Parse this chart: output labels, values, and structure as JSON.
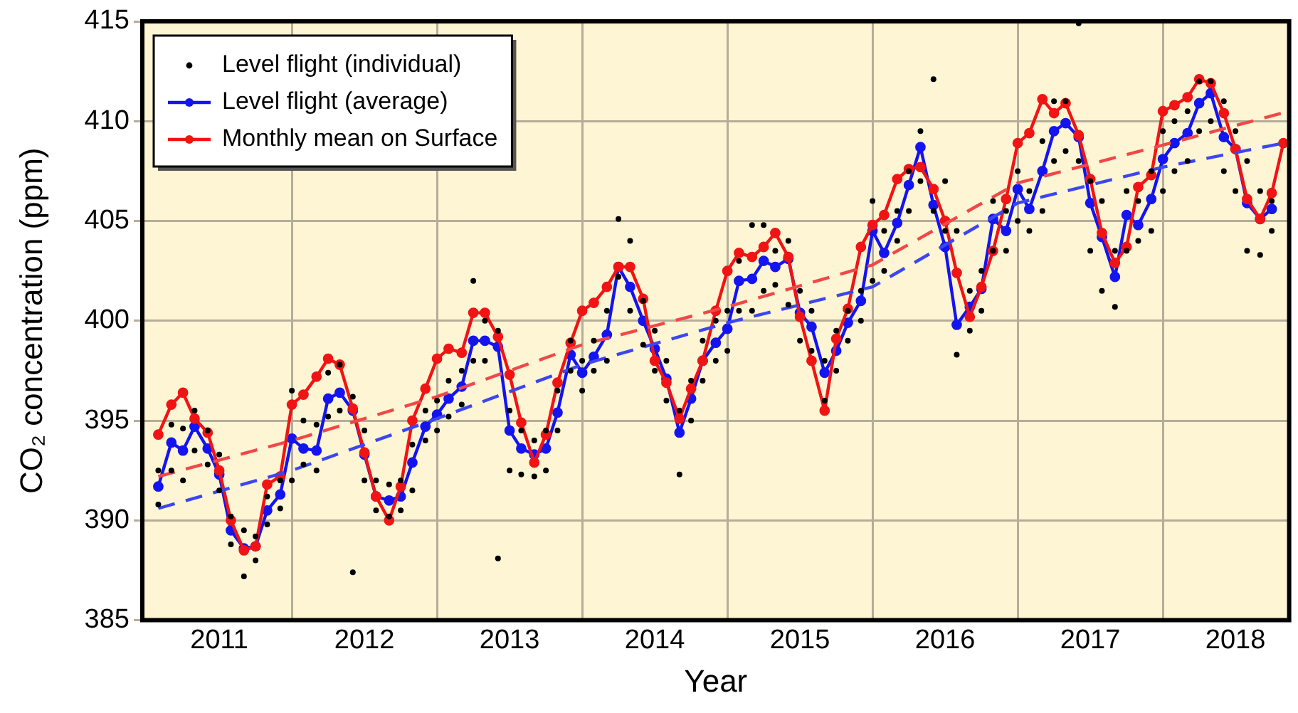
{
  "chart_data": {
    "type": "line",
    "xlabel": "Year",
    "ylabel": "CO₂ concentration (ppm)",
    "xlim": [
      2010.97,
      2018.87
    ],
    "ylim": [
      385,
      415
    ],
    "xticks": [
      {
        "value": 2011.5,
        "label": "2011"
      },
      {
        "value": 2012.5,
        "label": "2012"
      },
      {
        "value": 2013.5,
        "label": "2013"
      },
      {
        "value": 2014.5,
        "label": "2014"
      },
      {
        "value": 2015.5,
        "label": "2015"
      },
      {
        "value": 2016.5,
        "label": "2016"
      },
      {
        "value": 2017.5,
        "label": "2017"
      },
      {
        "value": 2018.5,
        "label": "2018"
      },
      {
        "value": 2012,
        "label": null
      },
      {
        "value": 2013,
        "label": null
      },
      {
        "value": 2014,
        "label": null
      },
      {
        "value": 2015,
        "label": null
      },
      {
        "value": 2016,
        "label": null
      },
      {
        "value": 2017,
        "label": null
      },
      {
        "value": 2018,
        "label": null
      }
    ],
    "yticks": [
      385,
      390,
      395,
      400,
      405,
      410,
      415
    ],
    "grid": true,
    "legend": "top left",
    "series": [
      {
        "name": "Level flight (individual)",
        "type": "scatter",
        "color": "#000000",
        "marker": "circle",
        "x": [
          2011.08,
          2011.08,
          2011.17,
          2011.17,
          2011.25,
          2011.25,
          2011.33,
          2011.33,
          2011.42,
          2011.42,
          2011.5,
          2011.5,
          2011.58,
          2011.58,
          2011.67,
          2011.67,
          2011.75,
          2011.75,
          2011.83,
          2011.83,
          2011.92,
          2011.92,
          2012,
          2012,
          2012.08,
          2012.08,
          2012.17,
          2012.17,
          2012.25,
          2012.25,
          2012.33,
          2012.33,
          2012.42,
          2012.42,
          2012.5,
          2012.5,
          2012.58,
          2012.58,
          2012.67,
          2012.67,
          2012.75,
          2012.75,
          2012.83,
          2012.83,
          2012.92,
          2012.92,
          2013,
          2013,
          2013.08,
          2013.08,
          2013.17,
          2013.17,
          2013.25,
          2013.25,
          2013.33,
          2013.33,
          2013.42,
          2013.42,
          2013.5,
          2013.5,
          2013.58,
          2013.58,
          2013.67,
          2013.67,
          2013.75,
          2013.75,
          2013.83,
          2013.83,
          2013.92,
          2013.92,
          2014,
          2014,
          2014.08,
          2014.08,
          2014.17,
          2014.17,
          2014.25,
          2014.25,
          2014.33,
          2014.33,
          2014.42,
          2014.42,
          2014.5,
          2014.5,
          2014.58,
          2014.58,
          2014.67,
          2014.67,
          2014.75,
          2014.75,
          2014.83,
          2014.83,
          2014.92,
          2014.92,
          2015,
          2015,
          2015.08,
          2015.08,
          2015.17,
          2015.17,
          2015.25,
          2015.25,
          2015.33,
          2015.33,
          2015.42,
          2015.42,
          2015.5,
          2015.5,
          2015.58,
          2015.58,
          2015.67,
          2015.67,
          2015.75,
          2015.75,
          2015.83,
          2015.83,
          2015.92,
          2015.92,
          2016,
          2016,
          2016.08,
          2016.08,
          2016.17,
          2016.17,
          2016.25,
          2016.25,
          2016.33,
          2016.33,
          2016.42,
          2016.42,
          2016.5,
          2016.5,
          2016.58,
          2016.58,
          2016.67,
          2016.67,
          2016.75,
          2016.75,
          2016.83,
          2016.83,
          2016.92,
          2016.92,
          2017,
          2017,
          2017.08,
          2017.08,
          2017.17,
          2017.17,
          2017.25,
          2017.25,
          2017.33,
          2017.33,
          2017.42,
          2017.42,
          2017.5,
          2017.5,
          2017.58,
          2017.58,
          2017.67,
          2017.67,
          2017.75,
          2017.75,
          2017.83,
          2017.83,
          2017.92,
          2017.92,
          2018,
          2018,
          2018.08,
          2018.08,
          2018.17,
          2018.17,
          2018.25,
          2018.25,
          2018.33,
          2018.33,
          2018.42,
          2018.42,
          2018.5,
          2018.5,
          2018.58,
          2018.58,
          2018.67,
          2018.67,
          2018.75,
          2018.75
        ],
        "values": [
          392.5,
          390.8,
          394.8,
          392.5,
          394.6,
          392.0,
          395.5,
          393.5,
          394.5,
          392.8,
          393.3,
          391.5,
          390.2,
          388.8,
          389.5,
          387.2,
          389.2,
          388.0,
          391.2,
          389.8,
          392.0,
          390.6,
          396.5,
          392.0,
          395.0,
          392.8,
          394.8,
          392.5,
          397.4,
          395.2,
          397.8,
          395.5,
          396.2,
          387.4,
          394.5,
          392.0,
          392.0,
          390.5,
          391.8,
          390.2,
          392.0,
          390.5,
          393.8,
          391.5,
          395.5,
          394.0,
          396.0,
          394.5,
          397.0,
          395.2,
          397.5,
          395.8,
          402.0,
          398.0,
          400.0,
          398.0,
          399.5,
          388.1,
          395.5,
          392.5,
          394.5,
          392.3,
          394.0,
          392.2,
          394.5,
          392.5,
          396.5,
          394.5,
          399.0,
          397.5,
          398.0,
          396.5,
          399.0,
          397.5,
          400.5,
          398.0,
          405.1,
          402.2,
          404.0,
          400.5,
          401.0,
          398.8,
          399.5,
          397.5,
          398.0,
          396.0,
          395.5,
          392.3,
          397.0,
          395.0,
          399.0,
          397.0,
          400.0,
          398.0,
          400.5,
          398.5,
          403.0,
          400.5,
          404.8,
          400.5,
          404.8,
          401.5,
          403.5,
          401.8,
          404.0,
          400.8,
          401.5,
          399.0,
          400.5,
          398.5,
          398.0,
          396.0,
          399.5,
          397.5,
          400.5,
          399.0,
          401.5,
          400.0,
          406.0,
          402.0,
          404.5,
          402.5,
          405.5,
          404.0,
          407.5,
          405.5,
          409.5,
          407.0,
          412.1,
          405.5,
          407.0,
          404.5,
          404.5,
          398.3,
          401.5,
          399.5,
          402.5,
          400.5,
          406.0,
          403.5,
          405.5,
          403.5,
          407.5,
          405.0,
          406.5,
          404.5,
          409.0,
          405.5,
          411.0,
          408.0,
          411.0,
          408.5,
          414.9,
          408.0,
          407.0,
          403.5,
          406.0,
          401.5,
          403.5,
          400.7,
          406.5,
          403.5,
          406.0,
          404.0,
          407.5,
          404.5,
          409.5,
          406.5,
          410.0,
          407.5,
          410.5,
          408.0,
          412.0,
          409.5,
          412.0,
          410.0,
          411.0,
          407.5,
          409.5,
          406.5,
          408.0,
          403.5,
          406.5,
          403.3,
          406.0,
          404.5
        ]
      },
      {
        "name": "Level flight (average)",
        "color": "#1414f0",
        "marker": "circle",
        "line_style": "solid",
        "x": [
          2011.08,
          2011.17,
          2011.25,
          2011.33,
          2011.42,
          2011.5,
          2011.58,
          2011.67,
          2011.75,
          2011.83,
          2011.92,
          2012,
          2012.08,
          2012.17,
          2012.25,
          2012.33,
          2012.42,
          2012.5,
          2012.58,
          2012.67,
          2012.75,
          2012.83,
          2012.92,
          2013,
          2013.08,
          2013.17,
          2013.25,
          2013.33,
          2013.42,
          2013.5,
          2013.58,
          2013.67,
          2013.75,
          2013.83,
          2013.92,
          2014,
          2014.08,
          2014.17,
          2014.25,
          2014.33,
          2014.42,
          2014.5,
          2014.58,
          2014.67,
          2014.75,
          2014.83,
          2014.92,
          2015,
          2015.08,
          2015.17,
          2015.25,
          2015.33,
          2015.42,
          2015.5,
          2015.58,
          2015.67,
          2015.75,
          2015.83,
          2015.92,
          2016,
          2016.08,
          2016.17,
          2016.25,
          2016.33,
          2016.42,
          2016.5,
          2016.58,
          2016.67,
          2016.75,
          2016.83,
          2016.92,
          2017,
          2017.08,
          2017.17,
          2017.25,
          2017.33,
          2017.42,
          2017.5,
          2017.58,
          2017.67,
          2017.75,
          2017.83,
          2017.92,
          2018,
          2018.08,
          2018.17,
          2018.25,
          2018.33,
          2018.42,
          2018.5,
          2018.58,
          2018.67,
          2018.75
        ],
        "values": [
          391.7,
          393.9,
          393.5,
          394.7,
          393.6,
          392.3,
          389.5,
          388.6,
          388.7,
          390.5,
          391.3,
          394.1,
          393.6,
          393.5,
          396.1,
          396.4,
          395.5,
          393.3,
          391.2,
          391.0,
          391.2,
          392.9,
          394.7,
          395.3,
          396.1,
          396.7,
          399.0,
          399.0,
          398.7,
          394.5,
          393.6,
          393.3,
          393.6,
          395.4,
          398.3,
          397.4,
          398.2,
          399.3,
          402.7,
          401.7,
          400.0,
          398.6,
          397.1,
          394.4,
          396.1,
          398.0,
          398.9,
          399.6,
          402.0,
          402.1,
          403.0,
          402.7,
          403.1,
          400.4,
          399.7,
          397.4,
          398.5,
          399.9,
          401.0,
          404.5,
          403.4,
          404.9,
          406.8,
          408.7,
          405.8,
          403.7,
          399.8,
          400.7,
          401.6,
          405.1,
          404.5,
          406.6,
          405.6,
          407.5,
          409.5,
          409.9,
          409.2,
          405.9,
          404.2,
          402.2,
          405.3,
          404.8,
          406.1,
          408.1,
          408.9,
          409.4,
          410.9,
          411.4,
          409.2,
          408.6,
          405.9,
          405.1,
          405.6
        ]
      },
      {
        "name": "Monthly mean on Surface",
        "color": "#f01414",
        "marker": "circle",
        "line_style": "solid",
        "x": [
          2011.08,
          2011.17,
          2011.25,
          2011.33,
          2011.42,
          2011.5,
          2011.58,
          2011.67,
          2011.75,
          2011.83,
          2011.92,
          2012,
          2012.08,
          2012.17,
          2012.25,
          2012.33,
          2012.42,
          2012.5,
          2012.58,
          2012.67,
          2012.75,
          2012.83,
          2012.92,
          2013,
          2013.08,
          2013.17,
          2013.25,
          2013.33,
          2013.42,
          2013.5,
          2013.58,
          2013.67,
          2013.75,
          2013.83,
          2013.92,
          2014,
          2014.08,
          2014.17,
          2014.25,
          2014.33,
          2014.42,
          2014.5,
          2014.58,
          2014.67,
          2014.75,
          2014.83,
          2014.92,
          2015,
          2015.08,
          2015.17,
          2015.25,
          2015.33,
          2015.42,
          2015.5,
          2015.58,
          2015.67,
          2015.75,
          2015.83,
          2015.92,
          2016,
          2016.08,
          2016.17,
          2016.25,
          2016.33,
          2016.42,
          2016.5,
          2016.58,
          2016.67,
          2016.75,
          2016.83,
          2016.92,
          2017,
          2017.08,
          2017.17,
          2017.25,
          2017.33,
          2017.42,
          2017.5,
          2017.58,
          2017.67,
          2017.75,
          2017.83,
          2017.92,
          2018,
          2018.08,
          2018.17,
          2018.25,
          2018.33,
          2018.42,
          2018.5,
          2018.58,
          2018.67,
          2018.75,
          2018.83
        ],
        "values": [
          394.3,
          395.8,
          396.4,
          395.1,
          394.4,
          392.5,
          390.0,
          388.5,
          388.7,
          391.8,
          392.2,
          395.8,
          396.3,
          397.2,
          398.1,
          397.8,
          395.6,
          393.4,
          391.2,
          390.0,
          391.7,
          395.0,
          396.6,
          398.1,
          398.6,
          398.4,
          400.4,
          400.4,
          399.2,
          397.3,
          394.9,
          392.9,
          394.3,
          396.9,
          398.9,
          400.5,
          400.9,
          401.7,
          402.7,
          402.7,
          401.1,
          398.0,
          396.9,
          395.1,
          396.6,
          398.0,
          400.5,
          402.5,
          403.4,
          403.2,
          403.7,
          404.4,
          403.2,
          400.2,
          398.0,
          395.5,
          399.1,
          400.6,
          403.7,
          404.8,
          405.3,
          407.1,
          407.6,
          407.7,
          406.6,
          405.0,
          402.4,
          400.2,
          401.7,
          403.5,
          406.1,
          408.9,
          409.4,
          411.1,
          410.4,
          410.9,
          409.3,
          407.1,
          404.4,
          402.9,
          403.7,
          406.7,
          407.3,
          410.5,
          410.8,
          411.2,
          412.1,
          411.9,
          410.4,
          408.6,
          406.1,
          405.1,
          406.4,
          408.9
        ]
      },
      {
        "color": "#f04848",
        "marker": "none",
        "line_style": "dashed",
        "x": [
          2011.08,
          2012,
          2013,
          2014,
          2015,
          2016,
          2017,
          2018,
          2018.87
        ],
        "values": [
          392.2,
          394.0,
          396.2,
          398.8,
          400.7,
          402.8,
          406.9,
          408.8,
          410.5
        ]
      },
      {
        "color": "#3c46f0",
        "marker": "none",
        "line_style": "dashed",
        "x": [
          2011.08,
          2012,
          2013,
          2014,
          2015,
          2016,
          2017,
          2018,
          2018.83
        ],
        "values": [
          390.6,
          392.5,
          395.1,
          397.8,
          399.9,
          401.7,
          405.9,
          407.7,
          408.9
        ]
      }
    ]
  }
}
